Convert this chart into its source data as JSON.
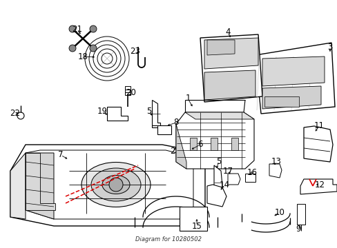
{
  "bg": "#ffffff",
  "lc": "#000000",
  "rc": "#dd0000",
  "fig_w": 4.89,
  "fig_h": 3.6,
  "dpi": 100,
  "caption": "Diagram for 10280502"
}
